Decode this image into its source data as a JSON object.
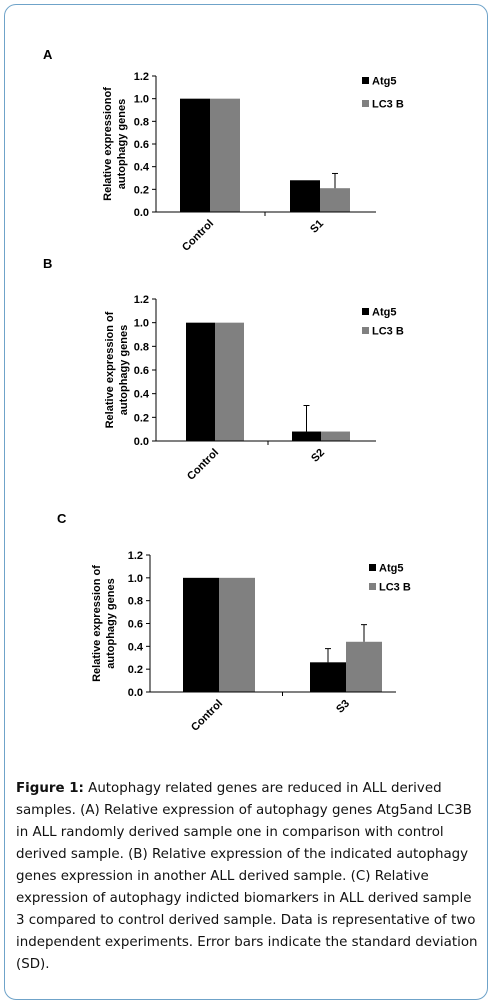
{
  "figure_caption": {
    "label": "Figure 1:",
    "text": "Autophagy related genes are reduced in ALL derived samples. (A) Relative expression of autophagy genes Atg5and LC3B in ALL randomly derived sample one in comparison with control derived sample. (B) Relative expression of the indicated autophagy genes expression in another ALL derived sample. (C) Relative expression of autophagy indicted biomarkers in ALL derived sample 3 compared to control derived sample. Data is representative of two independent experiments. Error bars indicate the standard deviation (SD)."
  },
  "colors": {
    "atg5": "#000000",
    "lc3b": "#808080",
    "border": "#6fa3c9"
  },
  "chart_data": [
    {
      "type": "bar",
      "panel_label": "A",
      "ylabel_lines": [
        "Relative expressionof",
        "autophagy genes"
      ],
      "ylim": [
        0,
        1.2
      ],
      "yticks": [
        "0.0",
        "0.2",
        "0.4",
        "0.6",
        "0.8",
        "1.0",
        "1.2"
      ],
      "categories": [
        "Control",
        "S1"
      ],
      "series": [
        {
          "name": "Atg5",
          "values": [
            1.0,
            0.28
          ],
          "error": [
            0,
            0
          ]
        },
        {
          "name": "LC3 B",
          "values": [
            1.0,
            0.21
          ],
          "error": [
            0,
            0.13
          ]
        }
      ],
      "legend_position": "right",
      "grid": false
    },
    {
      "type": "bar",
      "panel_label": "B",
      "ylabel_lines": [
        "Relative expression of",
        "autophagy genes"
      ],
      "ylim": [
        0,
        1.2
      ],
      "yticks": [
        "0.0",
        "0.2",
        "0.4",
        "0.6",
        "0.8",
        "1.0",
        "1.2"
      ],
      "categories": [
        "Control",
        "S2"
      ],
      "series": [
        {
          "name": "Atg5",
          "values": [
            1.0,
            0.08
          ],
          "error": [
            0,
            0.22
          ]
        },
        {
          "name": "LC3 B",
          "values": [
            1.0,
            0.08
          ],
          "error": [
            0,
            0
          ]
        }
      ],
      "legend_position": "right",
      "grid": false
    },
    {
      "type": "bar",
      "panel_label": "C",
      "ylabel_lines": [
        "Relative expression of",
        "autophagy genes"
      ],
      "ylim": [
        0,
        1.2
      ],
      "yticks": [
        "0.0",
        "0.2",
        "0.4",
        "0.6",
        "0.8",
        "1.0",
        "1.2"
      ],
      "categories": [
        "Control",
        "S3"
      ],
      "series": [
        {
          "name": "Atg5",
          "values": [
            1.0,
            0.26
          ],
          "error": [
            0,
            0.12
          ]
        },
        {
          "name": "LC3 B",
          "values": [
            1.0,
            0.44
          ],
          "error": [
            0,
            0.15
          ]
        }
      ],
      "legend_position": "right",
      "grid": false
    }
  ]
}
